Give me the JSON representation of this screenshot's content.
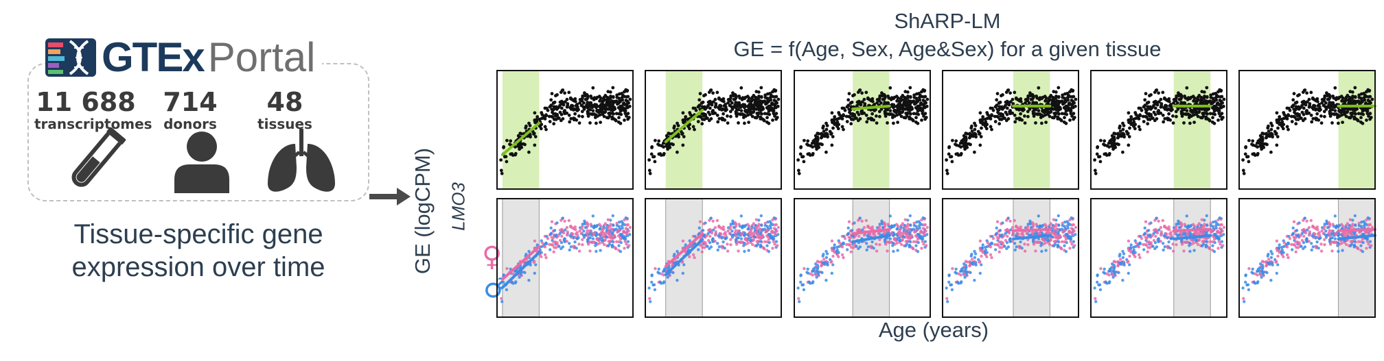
{
  "gtex": {
    "logo_brand": "GTEx",
    "logo_suffix": "Portal",
    "stats": [
      {
        "value": "11 688",
        "label": "transcriptomes",
        "icon": "test-tube-icon"
      },
      {
        "value": "714",
        "label": "donors",
        "icon": "person-icon"
      },
      {
        "value": "48",
        "label": "tissues",
        "icon": "lungs-icon"
      }
    ],
    "caption_line1": "Tissue-specific gene",
    "caption_line2": "expression over time"
  },
  "figure": {
    "title_line1": "ShARP-LM",
    "title_line2": "GE = f(Age, Sex, Age&Sex) for a given tissue",
    "y_label": "GE (logCPM)",
    "gene_label": "LMO3",
    "x_label": "Age (years)",
    "female_symbol": "♀",
    "male_symbol": "♂"
  },
  "colors": {
    "text": "#2d3e50",
    "logo_navy": "#1c3a5c",
    "points_all": "#111111",
    "fit_all": "#7fbf1e",
    "window_top": "#d8efb8",
    "window_bottom": "#e4e4e4",
    "female": "#ea6aa6",
    "male": "#3b8be6"
  },
  "chart_data": {
    "type": "scatter",
    "description_rows": [
      "all samples",
      "by sex"
    ],
    "panel_count": 6,
    "window_start_fraction": [
      0.04,
      0.15,
      0.43,
      0.52,
      0.61,
      0.73
    ],
    "window_width_fraction": 0.27,
    "fit_all_slope": [
      1.0,
      0.6,
      0.3,
      0.3,
      0.3,
      0.1
    ],
    "fit_female_slope": [
      1.0,
      0.6,
      0.3,
      0.3,
      0.3,
      0.1
    ],
    "fit_male_slope": [
      0.9,
      0.6,
      0.3,
      0.3,
      0.3,
      0.1
    ]
  }
}
